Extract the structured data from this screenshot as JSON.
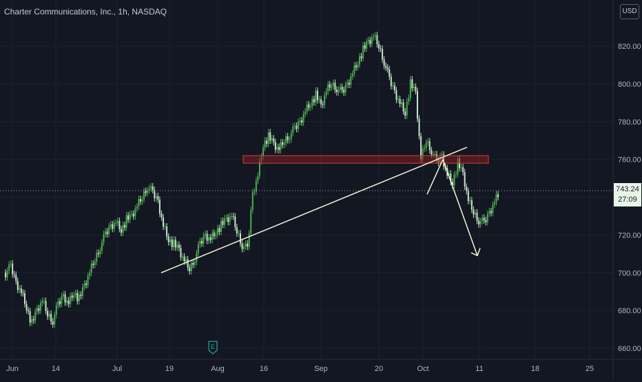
{
  "header": {
    "title": "Charter Communications, Inc., 1h, NASDAQ",
    "currency": "USD"
  },
  "price_badge": {
    "last_price": "743.24",
    "countdown": "27:09"
  },
  "earnings_marker": {
    "letter": "E"
  },
  "colors": {
    "background": "#131722",
    "grid": "#1e222d",
    "candle_up": "#4caf50",
    "candle_down": "#c8e6c9",
    "drawing": "#f5f5dc",
    "zone_border": "#e53935",
    "zone_fill": "#7a1f22",
    "axis_text": "#b2b5be"
  },
  "chart_data": {
    "type": "line",
    "title": "Charter Communications, Inc., 1h, NASDAQ",
    "x_ticks": [
      "Jun",
      "14",
      "Jul",
      "19",
      "Aug",
      "16",
      "Sep",
      "20",
      "Oct",
      "11",
      "18",
      "25"
    ],
    "y_ticks": [
      820,
      800,
      780,
      760,
      740,
      720,
      700,
      680,
      660
    ],
    "ylim": [
      655,
      832
    ],
    "series": [
      {
        "values": [
          [
            0,
            700
          ],
          [
            2,
            703
          ],
          [
            4,
            695
          ],
          [
            6,
            690
          ],
          [
            8,
            682
          ],
          [
            10,
            673
          ],
          [
            12,
            680
          ],
          [
            14,
            685
          ],
          [
            16,
            678
          ],
          [
            18,
            675
          ],
          [
            20,
            683
          ],
          [
            22,
            688
          ],
          [
            24,
            684
          ],
          [
            26,
            690
          ],
          [
            28,
            686
          ],
          [
            30,
            693
          ],
          [
            32,
            700
          ],
          [
            34,
            707
          ],
          [
            36,
            714
          ],
          [
            38,
            720
          ],
          [
            40,
            725
          ],
          [
            42,
            727
          ],
          [
            44,
            723
          ],
          [
            46,
            728
          ],
          [
            48,
            730
          ],
          [
            50,
            735
          ],
          [
            52,
            740
          ],
          [
            54,
            746
          ],
          [
            56,
            742
          ],
          [
            58,
            738
          ],
          [
            60,
            725
          ],
          [
            62,
            718
          ],
          [
            64,
            715
          ],
          [
            66,
            712
          ],
          [
            68,
            706
          ],
          [
            70,
            702
          ],
          [
            72,
            708
          ],
          [
            74,
            715
          ],
          [
            76,
            720
          ],
          [
            78,
            718
          ],
          [
            80,
            722
          ],
          [
            82,
            725
          ],
          [
            84,
            728
          ],
          [
            86,
            730
          ],
          [
            88,
            722
          ],
          [
            90,
            715
          ],
          [
            92,
            712
          ],
          [
            94,
            742
          ],
          [
            96,
            752
          ],
          [
            98,
            768
          ],
          [
            100,
            772
          ],
          [
            102,
            768
          ],
          [
            104,
            765
          ],
          [
            106,
            770
          ],
          [
            108,
            773
          ],
          [
            110,
            776
          ],
          [
            112,
            780
          ],
          [
            114,
            786
          ],
          [
            116,
            790
          ],
          [
            118,
            794
          ],
          [
            120,
            788
          ],
          [
            122,
            796
          ],
          [
            124,
            800
          ],
          [
            126,
            798
          ],
          [
            128,
            795
          ],
          [
            130,
            800
          ],
          [
            132,
            806
          ],
          [
            134,
            812
          ],
          [
            136,
            818
          ],
          [
            138,
            822
          ],
          [
            140,
            825
          ],
          [
            142,
            820
          ],
          [
            144,
            812
          ],
          [
            146,
            802
          ],
          [
            148,
            796
          ],
          [
            150,
            790
          ],
          [
            152,
            785
          ],
          [
            154,
            800
          ],
          [
            156,
            795
          ],
          [
            158,
            760
          ],
          [
            160,
            770
          ],
          [
            162,
            765
          ],
          [
            164,
            758
          ],
          [
            166,
            762
          ],
          [
            168,
            752
          ],
          [
            170,
            748
          ],
          [
            172,
            758
          ],
          [
            174,
            752
          ],
          [
            176,
            738
          ],
          [
            178,
            732
          ],
          [
            180,
            728
          ],
          [
            182,
            726
          ],
          [
            184,
            732
          ],
          [
            186,
            738
          ],
          [
            188,
            743
          ]
        ]
      }
    ],
    "annotations": {
      "trendline": [
        [
          70,
          700
        ],
        [
          200,
          765
        ]
      ],
      "resistance_zone": [
        758,
        762
      ],
      "projection": [
        [
          188,
          743
        ],
        [
          194,
          760
        ],
        [
          204,
          712
        ]
      ]
    }
  }
}
